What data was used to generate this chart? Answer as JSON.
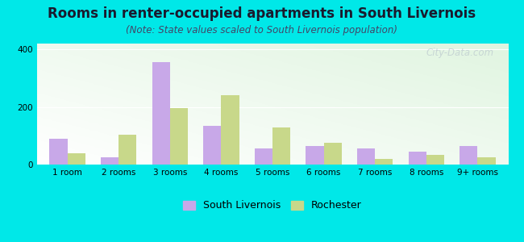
{
  "title": "Rooms in renter-occupied apartments in South Livernois",
  "subtitle": "(Note: State values scaled to South Livernois population)",
  "categories": [
    "1 room",
    "2 rooms",
    "3 rooms",
    "4 rooms",
    "5 rooms",
    "6 rooms",
    "7 rooms",
    "8 rooms",
    "9+ rooms"
  ],
  "south_livernois": [
    90,
    25,
    355,
    135,
    55,
    65,
    55,
    45,
    65
  ],
  "rochester": [
    40,
    105,
    195,
    240,
    130,
    75,
    20,
    35,
    25
  ],
  "sl_color": "#c8a8e8",
  "roc_color": "#c8d88a",
  "bg_outer": "#00e8e8",
  "ylim": [
    0,
    420
  ],
  "yticks": [
    0,
    200,
    400
  ],
  "bar_width": 0.35,
  "title_fontsize": 12,
  "subtitle_fontsize": 8.5,
  "tick_fontsize": 7.5,
  "legend_fontsize": 9,
  "watermark_text": "City-Data.com",
  "watermark_color": "#b0bcc8",
  "watermark_alpha": 0.55
}
